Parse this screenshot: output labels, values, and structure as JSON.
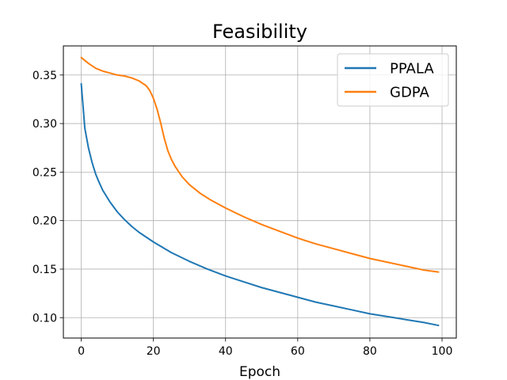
{
  "chart_data": {
    "type": "line",
    "title": "Feasibility",
    "xlabel": "Epoch",
    "ylabel": "",
    "xlim": [
      -4.95,
      103.95
    ],
    "ylim": [
      0.079,
      0.38
    ],
    "xticks": [
      0,
      20,
      40,
      60,
      80,
      100
    ],
    "xtick_labels": [
      "0",
      "20",
      "40",
      "60",
      "80",
      "100"
    ],
    "yticks": [
      0.1,
      0.15,
      0.2,
      0.25,
      0.3,
      0.35
    ],
    "ytick_labels": [
      "0.10",
      "0.15",
      "0.20",
      "0.25",
      "0.30",
      "0.35"
    ],
    "grid": true,
    "legend_position": "top-right",
    "series": [
      {
        "name": "PPALA",
        "color": "#1f77b4",
        "x": [
          0,
          1,
          2,
          3,
          4,
          5,
          6,
          7,
          8,
          10,
          12,
          14,
          16,
          18,
          20,
          25,
          30,
          35,
          40,
          45,
          50,
          55,
          60,
          65,
          70,
          75,
          80,
          85,
          90,
          95,
          99
        ],
        "y": [
          0.341,
          0.295,
          0.275,
          0.26,
          0.248,
          0.239,
          0.231,
          0.225,
          0.219,
          0.209,
          0.201,
          0.194,
          0.188,
          0.183,
          0.178,
          0.167,
          0.158,
          0.15,
          0.143,
          0.137,
          0.131,
          0.126,
          0.121,
          0.116,
          0.112,
          0.108,
          0.104,
          0.101,
          0.098,
          0.095,
          0.092
        ]
      },
      {
        "name": "GDPA",
        "color": "#ff7f0e",
        "x": [
          0,
          2,
          4,
          6,
          8,
          10,
          12,
          14,
          16,
          18,
          19,
          20,
          21,
          22,
          23,
          24,
          25,
          26,
          28,
          30,
          33,
          36,
          40,
          45,
          50,
          55,
          60,
          65,
          70,
          75,
          80,
          85,
          90,
          95,
          99
        ],
        "y": [
          0.368,
          0.362,
          0.357,
          0.354,
          0.352,
          0.35,
          0.349,
          0.347,
          0.344,
          0.339,
          0.334,
          0.326,
          0.315,
          0.301,
          0.285,
          0.272,
          0.263,
          0.256,
          0.245,
          0.237,
          0.228,
          0.221,
          0.213,
          0.204,
          0.196,
          0.189,
          0.182,
          0.176,
          0.171,
          0.166,
          0.161,
          0.157,
          0.153,
          0.149,
          0.147
        ]
      }
    ]
  }
}
